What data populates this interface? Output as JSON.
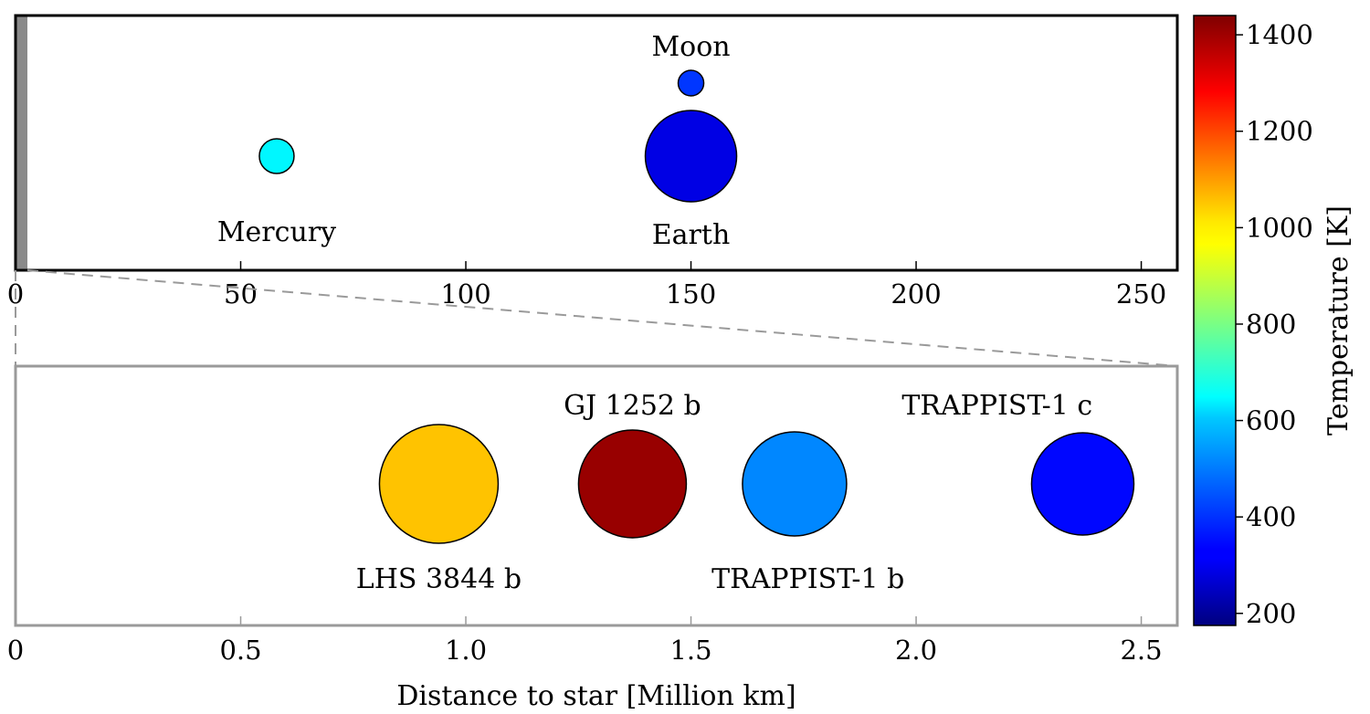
{
  "chart_data": [
    {
      "type": "scatter",
      "panel": "solar-system",
      "xlim": [
        0,
        258
      ],
      "x_ticks": [
        0,
        50,
        100,
        150,
        200,
        250
      ],
      "points": [
        {
          "name": "Mercury",
          "x": 58,
          "row": "main",
          "temperature_k": 640,
          "label_pos": "below"
        },
        {
          "name": "Earth",
          "x": 150,
          "row": "main",
          "temperature_k": 300,
          "label_pos": "below"
        },
        {
          "name": "Moon",
          "x": 150,
          "row": "upper",
          "temperature_k": 400,
          "label_pos": "above"
        }
      ],
      "zoom_region": [
        0,
        2.58
      ]
    },
    {
      "type": "scatter",
      "panel": "exoplanets",
      "xlim": [
        0,
        2.58
      ],
      "x_ticks": [
        0,
        0.5,
        1.0,
        1.5,
        2.0,
        2.5
      ],
      "x_tick_labels": [
        "0",
        "0.5",
        "1.0",
        "1.5",
        "2.0",
        "2.5"
      ],
      "xlabel": "Distance to star [Million km]",
      "points": [
        {
          "name": "LHS 3844 b",
          "x": 0.94,
          "temperature_k": 1040,
          "label_pos": "below"
        },
        {
          "name": "GJ 1252 b",
          "x": 1.37,
          "temperature_k": 1410,
          "label_pos": "above"
        },
        {
          "name": "TRAPPIST-1 b",
          "x": 1.73,
          "temperature_k": 500,
          "label_pos": "below"
        },
        {
          "name": "TRAPPIST-1 c",
          "x": 2.37,
          "temperature_k": 340,
          "label_pos": "above"
        }
      ]
    }
  ],
  "colorbar": {
    "label": "Temperature [K]",
    "range": [
      175,
      1440
    ],
    "ticks": [
      200,
      400,
      600,
      800,
      1000,
      1200,
      1400
    ],
    "colormap": "jet"
  }
}
